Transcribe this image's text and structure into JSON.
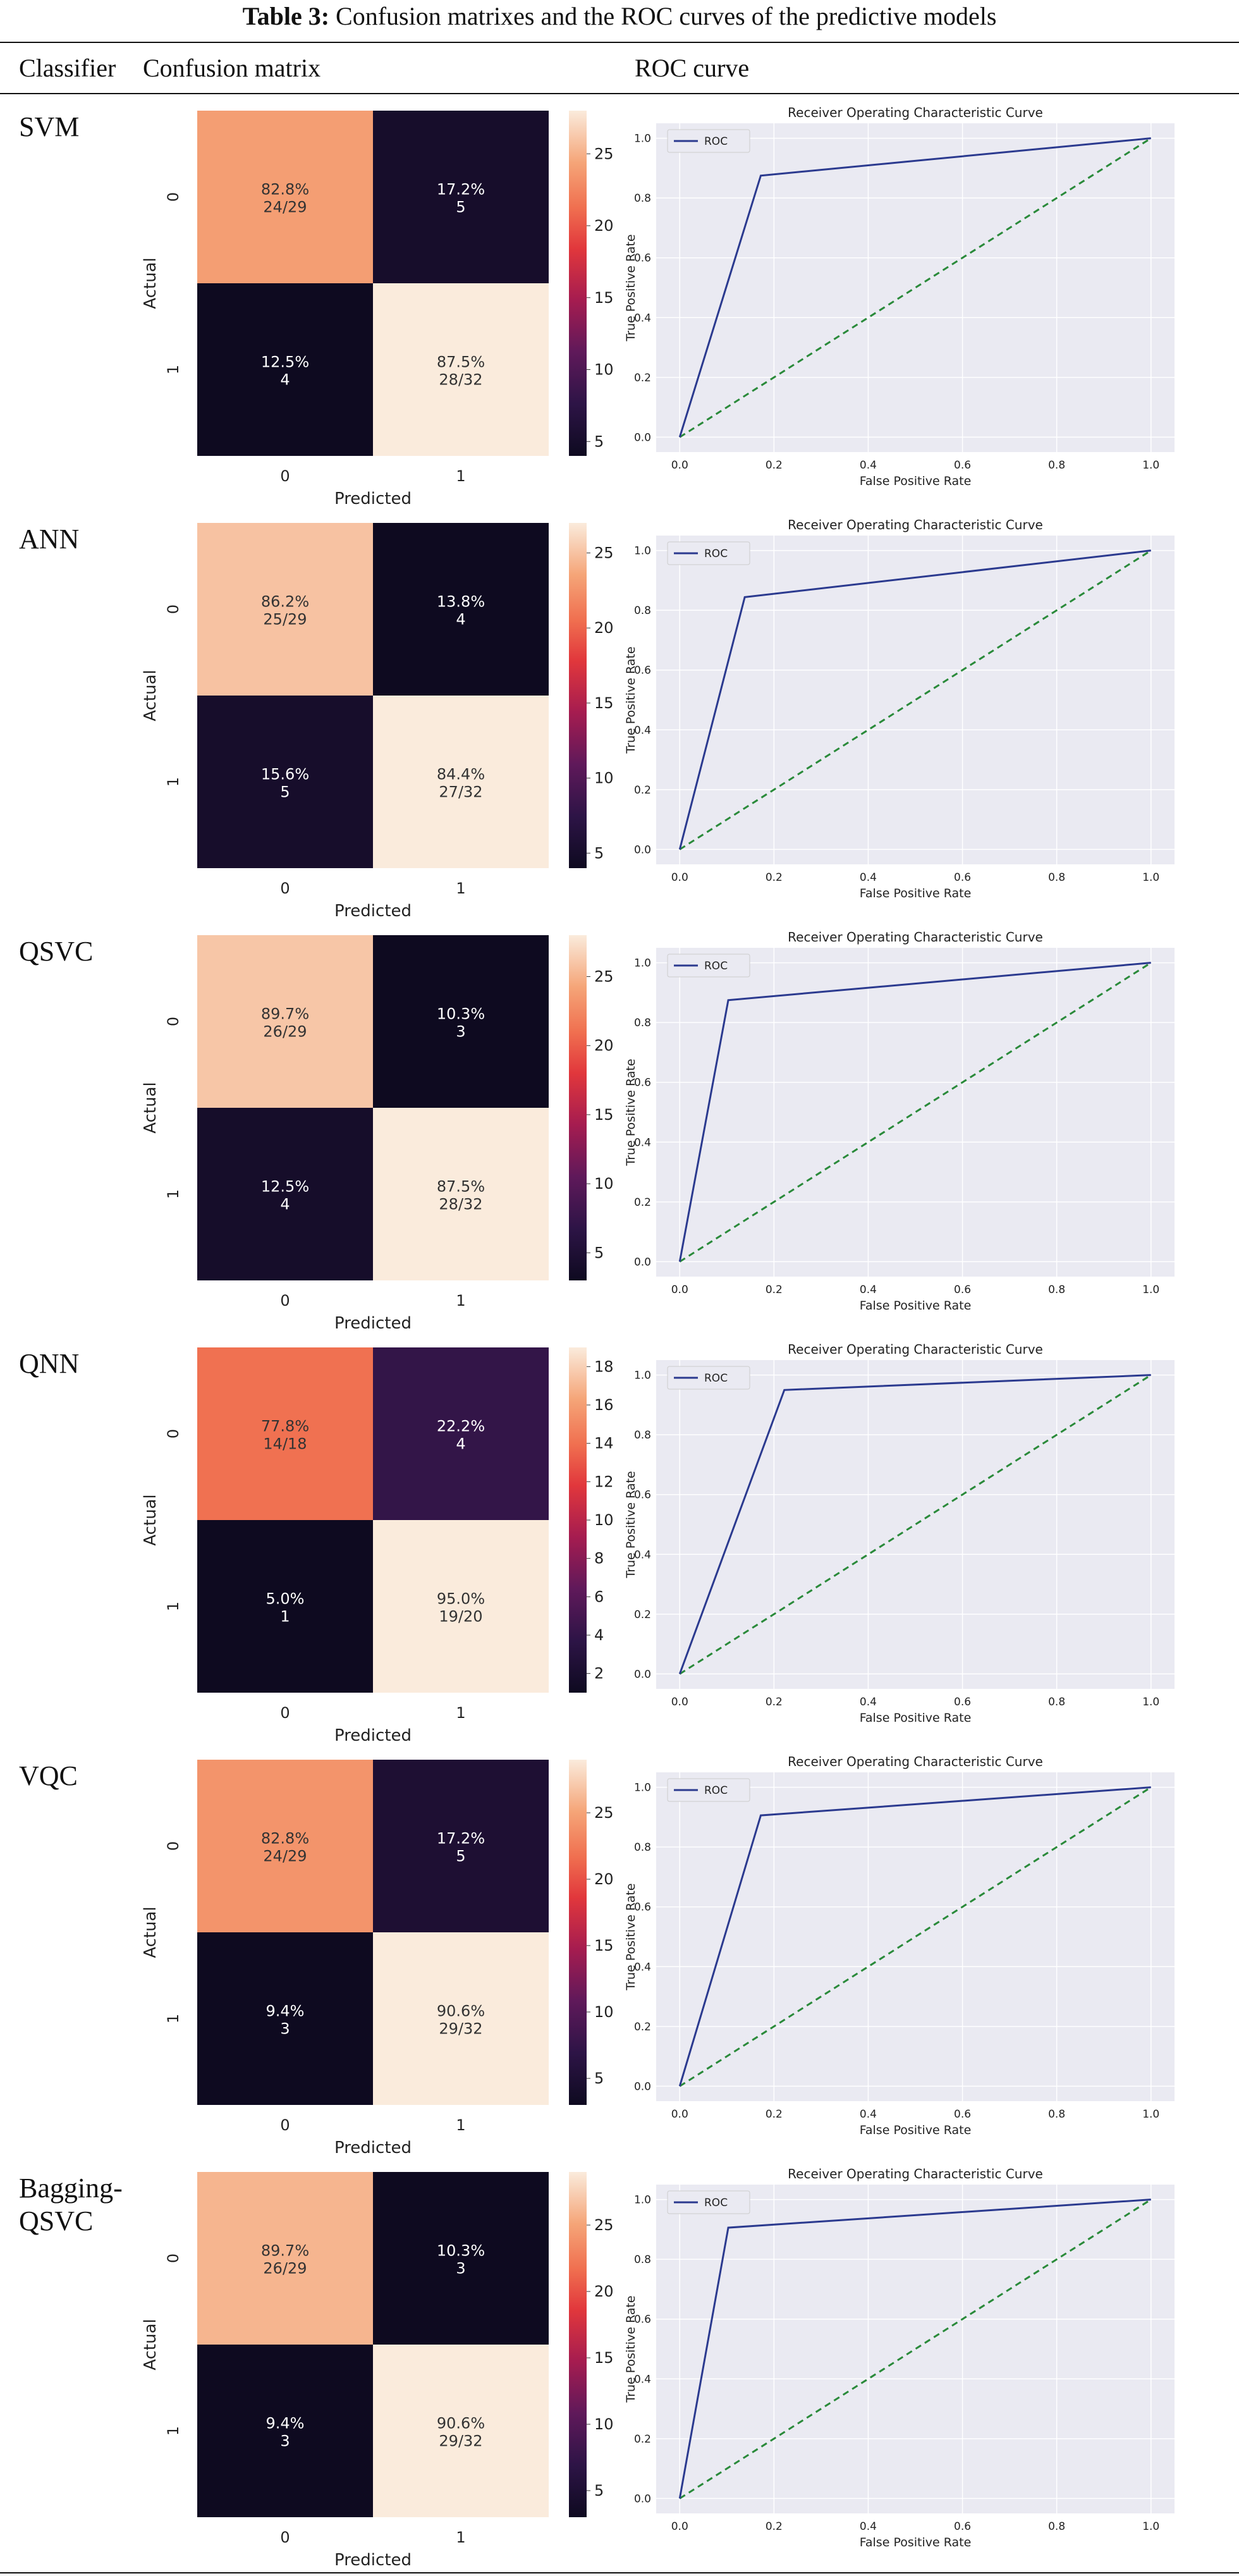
{
  "caption": {
    "label": "Table 3:",
    "text": "Confusion matrixes and the ROC curves of the predictive models"
  },
  "headers": {
    "classifier": "Classifier",
    "confusion": "Confusion matrix",
    "roc": "ROC curve"
  },
  "common": {
    "actual": "Actual",
    "predicted": "Predicted",
    "tick_0": "0",
    "tick_1": "1",
    "roc_title": "Receiver Operating Characteristic Curve",
    "roc_xlabel": "False Positive Rate",
    "roc_ylabel": "True Positive Rate",
    "roc_legend": "ROC",
    "roc_ticks": [
      "0.0",
      "0.2",
      "0.4",
      "0.6",
      "0.8",
      "1.0"
    ]
  },
  "colors": {
    "roc_line": "#2b3a8f",
    "diag_line": "#2a8a3a",
    "plot_bg": "#eaeaf2",
    "grid": "#ffffff"
  },
  "chart_data": [
    {
      "type": "heatmap",
      "name": "SVM",
      "cells": [
        {
          "pct": "82.8%",
          "count": "24/29",
          "value": 24
        },
        {
          "pct": "17.2%",
          "count": "5",
          "value": 5
        },
        {
          "pct": "12.5%",
          "count": "4",
          "value": 4
        },
        {
          "pct": "87.5%",
          "count": "28/32",
          "value": 28
        }
      ],
      "colorbar": {
        "min": 4,
        "max": 28,
        "ticks": [
          "5",
          "10",
          "15",
          "20",
          "25"
        ],
        "tick_values": [
          5,
          10,
          15,
          20,
          25
        ]
      },
      "roc": {
        "type": "line",
        "x": [
          0,
          0.172,
          1
        ],
        "y": [
          0,
          0.875,
          1
        ]
      }
    },
    {
      "type": "heatmap",
      "name": "ANN",
      "cells": [
        {
          "pct": "86.2%",
          "count": "25/29",
          "value": 25
        },
        {
          "pct": "13.8%",
          "count": "4",
          "value": 4
        },
        {
          "pct": "15.6%",
          "count": "5",
          "value": 5
        },
        {
          "pct": "84.4%",
          "count": "27/32",
          "value": 27
        }
      ],
      "colorbar": {
        "min": 4,
        "max": 27,
        "ticks": [
          "5",
          "10",
          "15",
          "20",
          "25"
        ],
        "tick_values": [
          5,
          10,
          15,
          20,
          25
        ]
      },
      "roc": {
        "type": "line",
        "x": [
          0,
          0.138,
          1
        ],
        "y": [
          0,
          0.844,
          1
        ]
      }
    },
    {
      "type": "heatmap",
      "name": "QSVC",
      "cells": [
        {
          "pct": "89.7%",
          "count": "26/29",
          "value": 26
        },
        {
          "pct": "10.3%",
          "count": "3",
          "value": 3
        },
        {
          "pct": "12.5%",
          "count": "4",
          "value": 4
        },
        {
          "pct": "87.5%",
          "count": "28/32",
          "value": 28
        }
      ],
      "colorbar": {
        "min": 3,
        "max": 28,
        "ticks": [
          "5",
          "10",
          "15",
          "20",
          "25"
        ],
        "tick_values": [
          5,
          10,
          15,
          20,
          25
        ]
      },
      "roc": {
        "type": "line",
        "x": [
          0,
          0.103,
          1
        ],
        "y": [
          0,
          0.875,
          1
        ]
      }
    },
    {
      "type": "heatmap",
      "name": "QNN",
      "cells": [
        {
          "pct": "77.8%",
          "count": "14/18",
          "value": 14
        },
        {
          "pct": "22.2%",
          "count": "4",
          "value": 4
        },
        {
          "pct": "5.0%",
          "count": "1",
          "value": 1
        },
        {
          "pct": "95.0%",
          "count": "19/20",
          "value": 19
        }
      ],
      "colorbar": {
        "min": 1,
        "max": 19,
        "ticks": [
          "2",
          "4",
          "6",
          "8",
          "10",
          "12",
          "14",
          "16",
          "18"
        ],
        "tick_values": [
          2,
          4,
          6,
          8,
          10,
          12,
          14,
          16,
          18
        ]
      },
      "roc": {
        "type": "line",
        "x": [
          0,
          0.222,
          1
        ],
        "y": [
          0,
          0.95,
          1
        ]
      }
    },
    {
      "type": "heatmap",
      "name": "VQC",
      "cells": [
        {
          "pct": "82.8%",
          "count": "24/29",
          "value": 24
        },
        {
          "pct": "17.2%",
          "count": "5",
          "value": 5
        },
        {
          "pct": "9.4%",
          "count": "3",
          "value": 3
        },
        {
          "pct": "90.6%",
          "count": "29/32",
          "value": 29
        }
      ],
      "colorbar": {
        "min": 3,
        "max": 29,
        "ticks": [
          "5",
          "10",
          "15",
          "20",
          "25"
        ],
        "tick_values": [
          5,
          10,
          15,
          20,
          25
        ]
      },
      "roc": {
        "type": "line",
        "x": [
          0,
          0.172,
          1
        ],
        "y": [
          0,
          0.906,
          1
        ]
      }
    },
    {
      "type": "heatmap",
      "name": "Bagging-QSVC",
      "cells": [
        {
          "pct": "89.7%",
          "count": "26/29",
          "value": 26
        },
        {
          "pct": "10.3%",
          "count": "3",
          "value": 3
        },
        {
          "pct": "9.4%",
          "count": "3",
          "value": 3
        },
        {
          "pct": "90.6%",
          "count": "29/32",
          "value": 29
        }
      ],
      "colorbar": {
        "min": 3,
        "max": 29,
        "ticks": [
          "5",
          "10",
          "15",
          "20",
          "25"
        ],
        "tick_values": [
          5,
          10,
          15,
          20,
          25
        ]
      },
      "roc": {
        "type": "line",
        "x": [
          0,
          0.103,
          1
        ],
        "y": [
          0,
          0.906,
          1
        ]
      }
    }
  ]
}
